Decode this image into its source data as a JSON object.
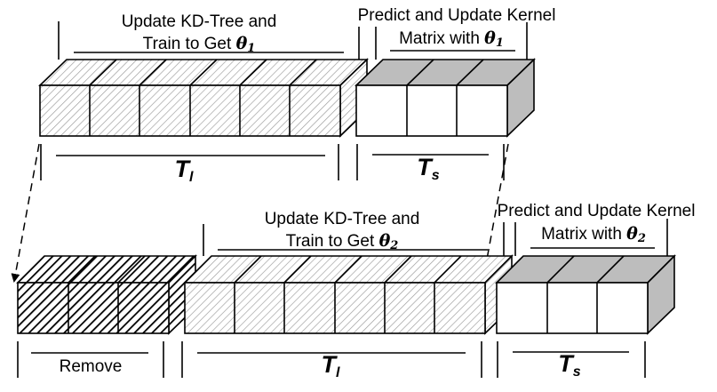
{
  "row1": {
    "training_label_line1": "Update KD-Tree and",
    "training_label_line2": "Train to Get",
    "training_theta": "θ",
    "training_theta_sub": "1",
    "predict_label_line1": "Predict and Update Kernel",
    "predict_label_line2": "Matrix with",
    "predict_theta": "θ",
    "predict_theta_sub": "1",
    "tl_label": "T",
    "tl_sub": "l",
    "ts_label": "T",
    "ts_sub": "s"
  },
  "row2": {
    "training_label_line1": "Update KD-Tree and",
    "training_label_line2": "Train to Get",
    "training_theta": "θ",
    "training_theta_sub": "2",
    "predict_label_line1": "Predict and Update Kernel",
    "predict_label_line2": "Matrix with",
    "predict_theta": "θ",
    "predict_theta_sub": "2",
    "remove_label": "Remove",
    "tl_label": "T",
    "tl_sub": "l",
    "ts_label": "T",
    "ts_sub": "s"
  },
  "colors": {
    "light_hatch": "#9a9a9a",
    "dark_hatch": "#000000",
    "gray_face": "#bdbdbd",
    "white_face": "#ffffff"
  }
}
